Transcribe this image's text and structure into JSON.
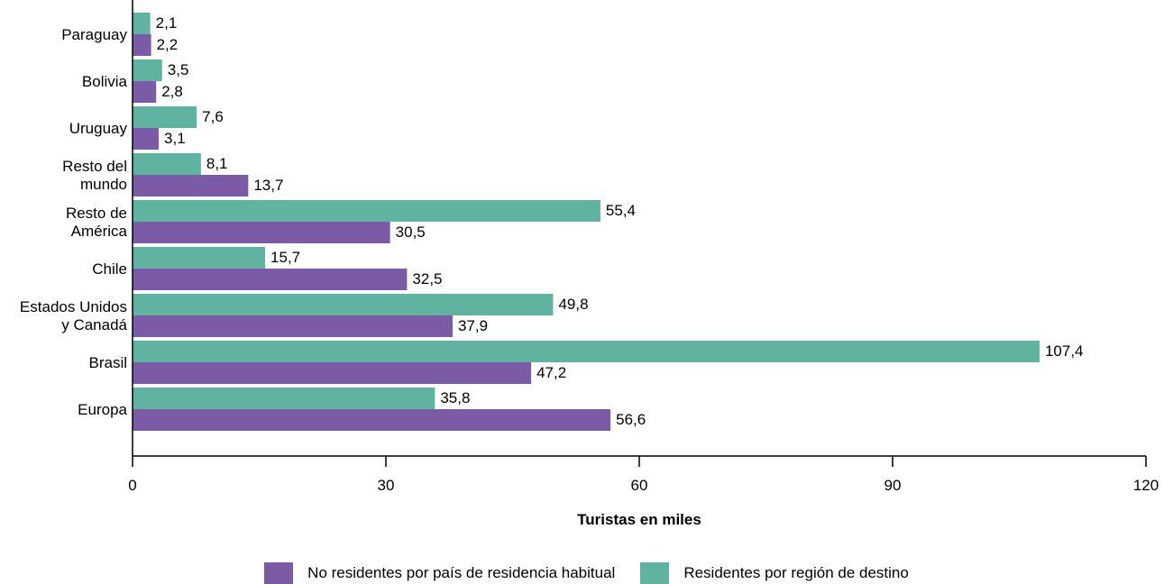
{
  "chart_data": {
    "type": "bar",
    "orientation": "horizontal",
    "categories": [
      [
        "Paraguay"
      ],
      [
        "Bolivia"
      ],
      [
        "Uruguay"
      ],
      [
        "Resto del",
        "mundo"
      ],
      [
        "Resto de",
        "América"
      ],
      [
        "Chile"
      ],
      [
        "Estados Unidos",
        "y Canadá"
      ],
      [
        "Brasil"
      ],
      [
        "Europa"
      ]
    ],
    "series": [
      {
        "name": "Residentes por región de destino",
        "color": "#5fb3a0",
        "values": [
          2.1,
          3.5,
          7.6,
          8.1,
          55.4,
          15.7,
          49.8,
          107.4,
          35.8
        ],
        "labels": [
          "2,1",
          "3,5",
          "7,6",
          "8,1",
          "55,4",
          "15,7",
          "49,8",
          "107,4",
          "35,8"
        ]
      },
      {
        "name": "No residentes por país de residencia habitual",
        "color": "#7b5aa6",
        "values": [
          2.2,
          2.8,
          3.1,
          13.7,
          30.5,
          32.5,
          37.9,
          47.2,
          56.6
        ],
        "labels": [
          "2,2",
          "2,8",
          "3,1",
          "13,7",
          "30,5",
          "32,5",
          "37,9",
          "47,2",
          "56,6"
        ]
      }
    ],
    "xlabel": "Turistas en miles",
    "xlim": [
      0,
      120
    ],
    "xticks": [
      0,
      30,
      60,
      90,
      120
    ],
    "grid": false,
    "legend_position": "bottom"
  },
  "legend": {
    "items": [
      {
        "label": "No residentes por país de residencia habitual",
        "color": "#7b5aa6"
      },
      {
        "label": "Residentes por región de destino",
        "color": "#5fb3a0"
      }
    ]
  }
}
